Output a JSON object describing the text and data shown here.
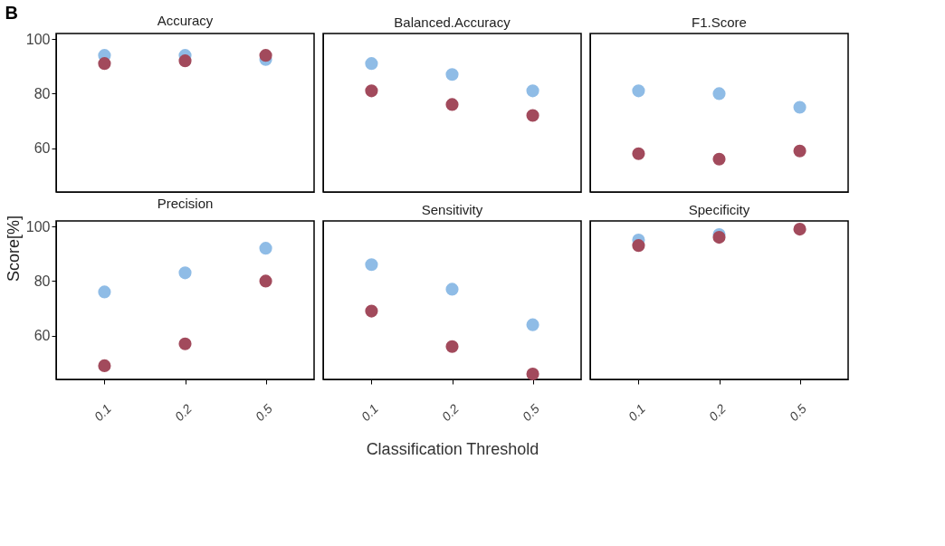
{
  "chart_data": [
    {
      "type": "scatter",
      "title": "Accuracy",
      "annotations": [
        "B"
      ],
      "categories": [
        "0.1",
        "0.2",
        "0.5"
      ],
      "ylim": [
        44,
        102
      ],
      "yticks": [
        60,
        80,
        100
      ],
      "tick_labels": "y",
      "grid": false,
      "marker": "circle",
      "series": [
        {
          "color": "#8fbce6",
          "values": [
            94,
            94,
            92.5
          ]
        },
        {
          "color": "#a24a5c",
          "values": [
            91,
            92,
            94
          ]
        }
      ]
    },
    {
      "type": "scatter",
      "title": "Balanced.Accuracy",
      "categories": [
        "0.1",
        "0.2",
        "0.5"
      ],
      "ylim": [
        44,
        102
      ],
      "yticks": [
        60,
        80,
        100
      ],
      "tick_labels": false,
      "grid": false,
      "marker": "circle",
      "series": [
        {
          "color": "#8fbce6",
          "values": [
            91,
            87,
            81
          ]
        },
        {
          "color": "#a24a5c",
          "values": [
            81,
            76,
            72
          ]
        }
      ]
    },
    {
      "type": "scatter",
      "title": "F1.Score",
      "categories": [
        "0.1",
        "0.2",
        "0.5"
      ],
      "ylim": [
        44,
        102
      ],
      "yticks": [
        60,
        80,
        100
      ],
      "tick_labels": false,
      "grid": false,
      "marker": "circle",
      "series": [
        {
          "color": "#8fbce6",
          "values": [
            81,
            80,
            75
          ]
        },
        {
          "color": "#a24a5c",
          "values": [
            58,
            56,
            59
          ]
        }
      ]
    },
    {
      "type": "scatter",
      "title": "Precision",
      "ylabel": "Score[%]",
      "categories": [
        "0.1",
        "0.2",
        "0.5"
      ],
      "ylim": [
        44,
        102
      ],
      "yticks": [
        60,
        80,
        100
      ],
      "grid": false,
      "marker": "circle",
      "series": [
        {
          "color": "#8fbce6",
          "values": [
            76,
            83,
            92
          ]
        },
        {
          "color": "#a24a5c",
          "values": [
            49,
            57,
            80
          ]
        }
      ]
    },
    {
      "type": "scatter",
      "title": "Sensitivity",
      "xlabel": "Classification Threshold",
      "categories": [
        "0.1",
        "0.2",
        "0.5"
      ],
      "ylim": [
        44,
        102
      ],
      "yticks": [
        60,
        80,
        100
      ],
      "tick_labels": "x",
      "grid": false,
      "marker": "circle",
      "series": [
        {
          "color": "#8fbce6",
          "values": [
            86,
            77,
            64
          ]
        },
        {
          "color": "#a24a5c",
          "values": [
            69,
            56,
            46
          ]
        }
      ]
    },
    {
      "type": "scatter",
      "title": "Specificity",
      "categories": [
        "0.1",
        "0.2",
        "0.5"
      ],
      "ylim": [
        44,
        102
      ],
      "yticks": [
        60,
        80,
        100
      ],
      "tick_labels": "x",
      "grid": false,
      "marker": "circle",
      "series": [
        {
          "color": "#8fbce6",
          "values": [
            95,
            97,
            null
          ]
        },
        {
          "color": "#a24a5c",
          "values": [
            93,
            96,
            99
          ]
        }
      ]
    }
  ]
}
